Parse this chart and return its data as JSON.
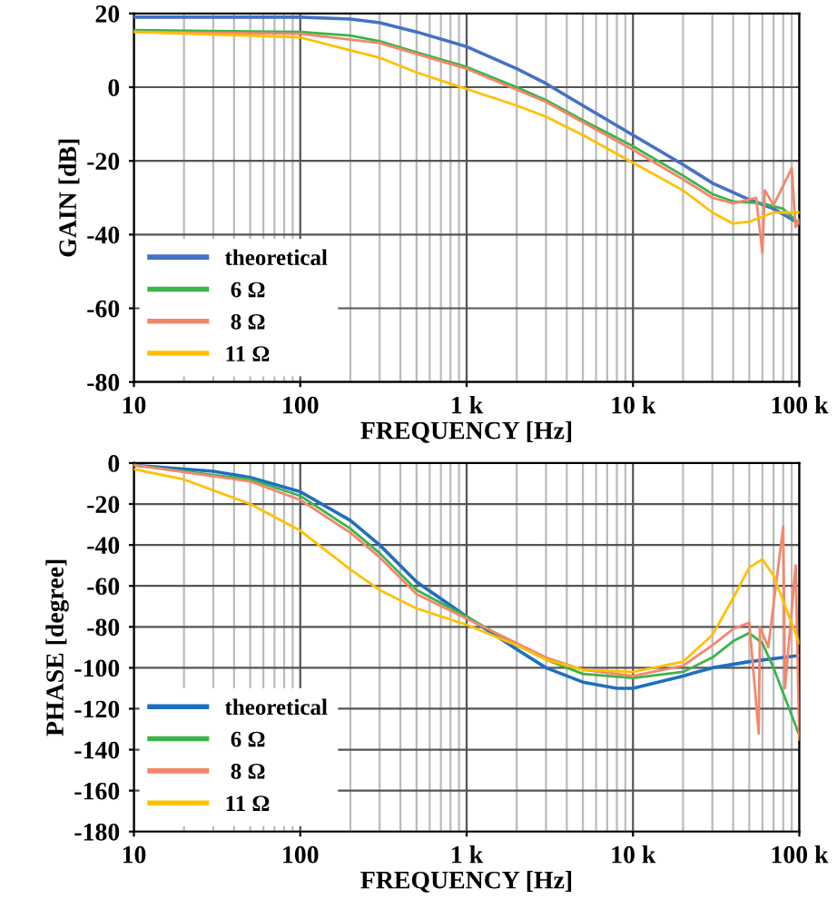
{
  "chart_data": [
    {
      "type": "line",
      "xlabel": "FREQUENCY [Hz]",
      "ylabel": "GAIN [dB]",
      "log": "x",
      "grid": true,
      "legend": "lower left",
      "xlim": [
        10,
        100000
      ],
      "xticks": [
        10,
        100,
        {
          "value": 1000,
          "label": "1 k"
        },
        {
          "value": 10000,
          "label": "10 k"
        },
        {
          "value": 100000,
          "label": "100 k"
        }
      ],
      "ylim": [
        -80,
        20
      ],
      "yticks": [
        -80,
        -60,
        -40,
        -20,
        0,
        20
      ],
      "series": [
        {
          "name": "theoretical",
          "color": "#4472c4",
          "x": [
            10,
            100,
            200,
            300,
            500,
            1000,
            2000,
            3000,
            5000,
            10000,
            20000,
            30000,
            50000,
            70000,
            100000
          ],
          "values": [
            19,
            19,
            18.5,
            17.5,
            15,
            11,
            5,
            1,
            -5,
            -13,
            -21,
            -26,
            -30.5,
            -33,
            -37
          ]
        },
        {
          "name": " 6 Ω",
          "color": "#3cb44b",
          "x": [
            10,
            100,
            200,
            300,
            500,
            1000,
            2000,
            3000,
            5000,
            10000,
            20000,
            30000,
            40000,
            60000,
            80000,
            100000
          ],
          "values": [
            15.5,
            15,
            14,
            12.5,
            9.5,
            5.5,
            0,
            -3.5,
            -9,
            -16,
            -24,
            -29,
            -31,
            -31.5,
            -33,
            -37
          ]
        },
        {
          "name": " 8 Ω",
          "color": "#f4876b",
          "x": [
            10,
            100,
            300,
            1000,
            3000,
            10000,
            20000,
            30000,
            40000,
            55000,
            60000,
            62000,
            70000,
            90000,
            95000,
            100000
          ],
          "values": [
            15,
            14.5,
            12,
            5,
            -4,
            -17,
            -25,
            -30,
            -31.5,
            -30,
            -45,
            -28,
            -32,
            -22,
            -38,
            -36
          ]
        },
        {
          "name": "11 Ω",
          "color": "#ffc000",
          "x": [
            10,
            100,
            200,
            300,
            500,
            1000,
            2000,
            3000,
            5000,
            10000,
            20000,
            30000,
            40000,
            50000,
            70000,
            100000
          ],
          "values": [
            15,
            13.5,
            10,
            8,
            4,
            -0.5,
            -5,
            -8,
            -13,
            -20.5,
            -28,
            -34,
            -37,
            -36.5,
            -34,
            -34
          ]
        }
      ]
    },
    {
      "type": "line",
      "xlabel": "FREQUENCY [Hz]",
      "ylabel": "PHASE [degree]",
      "log": "x",
      "grid": true,
      "legend": "lower left",
      "xlim": [
        10,
        100000
      ],
      "xticks": [
        10,
        100,
        {
          "value": 1000,
          "label": "1 k"
        },
        {
          "value": 10000,
          "label": "10 k"
        },
        {
          "value": 100000,
          "label": "100 k"
        }
      ],
      "ylim": [
        -180,
        0
      ],
      "yticks": [
        -180,
        -160,
        -140,
        -120,
        -100,
        -80,
        -60,
        -40,
        -20,
        0
      ],
      "series": [
        {
          "name": "theoretical",
          "color": "#1f6fc0",
          "x": [
            10,
            30,
            50,
            100,
            200,
            300,
            500,
            1000,
            2000,
            3000,
            5000,
            8000,
            10000,
            20000,
            30000,
            50000,
            100000
          ],
          "values": [
            -1,
            -4,
            -7,
            -14,
            -28,
            -40,
            -58,
            -75,
            -91,
            -100,
            -107,
            -110,
            -110,
            -104,
            -100,
            -97,
            -94
          ]
        },
        {
          "name": " 6 Ω",
          "color": "#3cb44b",
          "x": [
            10,
            50,
            100,
            200,
            300,
            500,
            1000,
            2000,
            3000,
            5000,
            10000,
            20000,
            30000,
            40000,
            50000,
            60000,
            70000,
            100000
          ],
          "values": [
            -1,
            -8,
            -16,
            -32,
            -44,
            -62,
            -75,
            -89,
            -96,
            -103,
            -105,
            -102,
            -95,
            -87,
            -83,
            -88,
            -100,
            -133
          ]
        },
        {
          "name": " 8 Ω",
          "color": "#f4876b",
          "x": [
            10,
            50,
            100,
            200,
            300,
            500,
            1000,
            2000,
            3000,
            5000,
            10000,
            20000,
            30000,
            40000,
            50000,
            57000,
            58000,
            65000,
            80000,
            82000,
            95000,
            100000
          ],
          "values": [
            -1,
            -9,
            -18,
            -34,
            -46,
            -64,
            -76,
            -88,
            -95,
            -101,
            -104,
            -99,
            -89,
            -81,
            -78,
            -132,
            -80,
            -90,
            -31,
            -110,
            -50,
            -135
          ]
        },
        {
          "name": "11 Ω",
          "color": "#ffc000",
          "x": [
            10,
            20,
            50,
            100,
            200,
            300,
            500,
            1000,
            2000,
            3000,
            5000,
            10000,
            20000,
            30000,
            40000,
            50000,
            60000,
            70000,
            100000
          ],
          "values": [
            -3,
            -8,
            -20,
            -33,
            -52,
            -62,
            -71,
            -79,
            -89,
            -96,
            -101,
            -102,
            -97,
            -84,
            -66,
            -51,
            -47,
            -55,
            -88
          ]
        }
      ]
    }
  ]
}
